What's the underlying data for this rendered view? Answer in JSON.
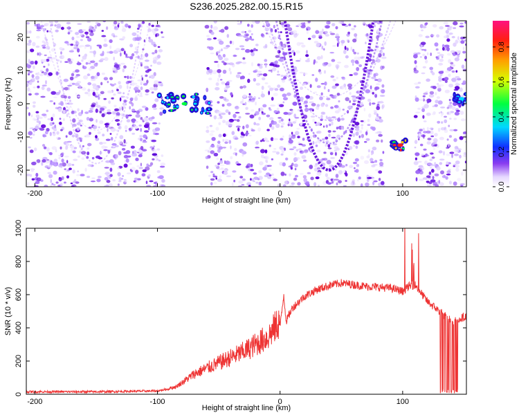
{
  "title": "S236.2025.282.00.15.R15",
  "colors": {
    "snr_line": "#ee3333",
    "spec_low": "#d8c8ff",
    "spec_mid": "#7a3cf0",
    "spec_high": "#ff1177"
  },
  "chart_data": [
    {
      "type": "heatmap",
      "name": "spectrogram",
      "xlabel": "Height of straight line (km)",
      "ylabel": "Frequency (Hz)",
      "xlim": [
        -207,
        152
      ],
      "ylim": [
        -25,
        25
      ],
      "xticks": [
        -200,
        -100,
        0,
        100
      ],
      "yticks": [
        -20,
        -10,
        0,
        10,
        20
      ],
      "gaps_km": [
        [
          -95,
          -60
        ],
        [
          85,
          110
        ]
      ],
      "features": [
        {
          "x": -78,
          "y": 0,
          "label": "blob",
          "amp": 0.45
        },
        {
          "x": 98,
          "y": -12.5,
          "label": "blob",
          "amp": 0.9
        },
        {
          "x": 148,
          "y": 1.5,
          "label": "blob",
          "amp": 0.35
        }
      ],
      "colorbar": {
        "label": "Normalized spectral amplitude",
        "range": [
          0.0,
          0.95
        ],
        "ticks": [
          0.0,
          0.2,
          0.4,
          0.6,
          0.8
        ]
      }
    },
    {
      "type": "line",
      "name": "snr",
      "xlabel": "Height of straight line (km)",
      "ylabel": "SNR (10 * v/v)",
      "xlim": [
        -207,
        152
      ],
      "ylim": [
        0,
        1000
      ],
      "xticks": [
        -200,
        -100,
        0,
        100
      ],
      "yticks": [
        0,
        200,
        400,
        600,
        800,
        1000
      ],
      "series": [
        {
          "name": "SNR",
          "x": [
            -207,
            -150,
            -100,
            -85,
            -70,
            -50,
            -30,
            -10,
            0,
            3,
            5,
            10,
            20,
            30,
            40,
            50,
            60,
            70,
            80,
            90,
            100,
            105,
            110,
            120,
            130,
            140,
            152
          ],
          "y": [
            15,
            15,
            20,
            40,
            110,
            170,
            230,
            310,
            400,
            600,
            440,
            520,
            590,
            630,
            655,
            670,
            660,
            650,
            645,
            640,
            620,
            650,
            660,
            560,
            500,
            440,
            470
          ]
        }
      ]
    }
  ]
}
